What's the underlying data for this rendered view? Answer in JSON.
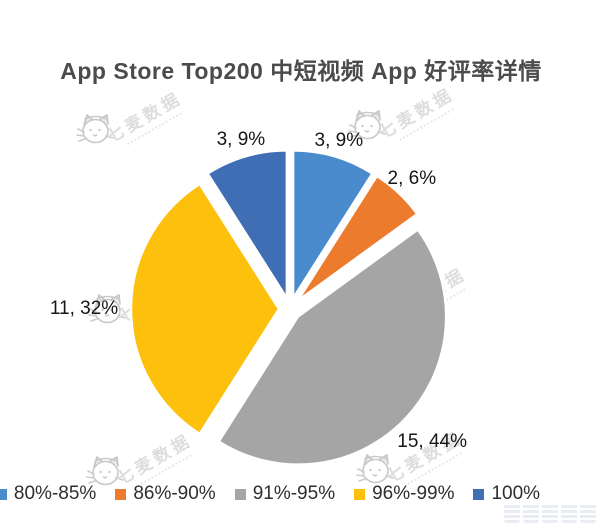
{
  "title": "App Store Top200 中短视频 App 好评率详情",
  "watermark": {
    "text": "七麦数据"
  },
  "chart_data": {
    "type": "pie",
    "title": "App Store Top200 中短视频 App 好评率详情",
    "exploded": true,
    "start_angle_deg": 0,
    "direction": "clockwise",
    "legend_position": "bottom",
    "data_label_format": "count, percent",
    "slices": [
      {
        "legend_label": "80%-85%",
        "count": 3,
        "percent": 9,
        "data_label": "3, 9%",
        "color": "#4a8bce"
      },
      {
        "legend_label": "86%-90%",
        "count": 2,
        "percent": 6,
        "data_label": "2, 6%",
        "color": "#ec7b2e"
      },
      {
        "legend_label": "91%-95%",
        "count": 15,
        "percent": 44,
        "data_label": "15, 44%",
        "color": "#a5a5a5"
      },
      {
        "legend_label": "96%-99%",
        "count": 11,
        "percent": 32,
        "data_label": "11, 32%",
        "color": "#fdc00d"
      },
      {
        "legend_label": "100%",
        "count": 3,
        "percent": 9,
        "data_label": "3, 9%",
        "color": "#3f6eb5"
      }
    ]
  }
}
